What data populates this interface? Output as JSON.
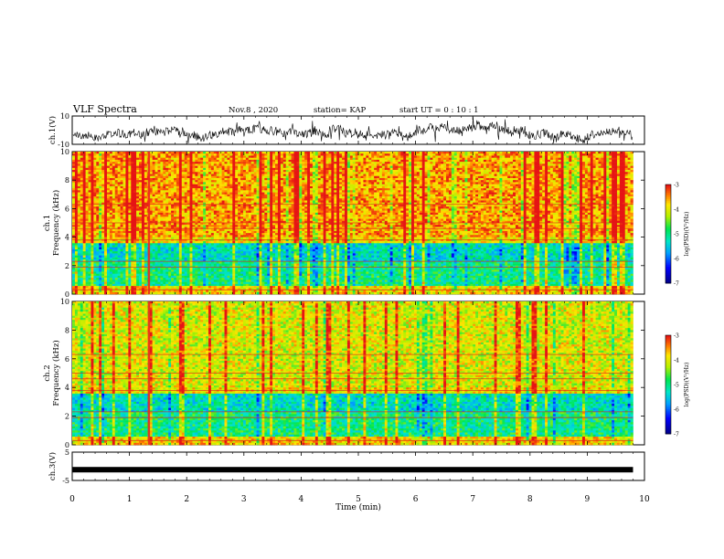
{
  "header": {
    "title": "VLF Spectra",
    "date": "Nov.8 , 2020",
    "station": "station= KAP",
    "start": "start UT = 0 : 10 : 1"
  },
  "chart_data": [
    {
      "type": "line",
      "panel": "ch1-waveform",
      "ylabel": "ch.1(V)",
      "ylim": [
        -10,
        10
      ],
      "yticks": [
        "10",
        "-10"
      ],
      "xlim": [
        0,
        10
      ],
      "series": [
        {
          "values_note_omitted": true
        }
      ],
      "color": "#000000"
    },
    {
      "type": "heatmap",
      "panel": "ch1-spectrogram",
      "ylabel": "ch.1 Frequency (kHz)",
      "ylim": [
        0,
        10
      ],
      "yticks": [
        "0",
        "2",
        "4",
        "6",
        "8",
        "10"
      ],
      "xlim": [
        0,
        9.8
      ],
      "colorbar": {
        "label": "log(PSD)(V²/Hz)",
        "range": [
          -7,
          -3
        ],
        "ticks": [
          "-3",
          "-4",
          "-5",
          "-6",
          "-7"
        ]
      }
    },
    {
      "type": "heatmap",
      "panel": "ch2-spectrogram",
      "ylabel": "ch.2 Frequency (kHz)",
      "ylim": [
        0,
        10
      ],
      "yticks": [
        "0",
        "2",
        "4",
        "6",
        "8",
        "10"
      ],
      "xlim": [
        0,
        9.8
      ],
      "colorbar": {
        "label": "log(PSD)(V²/Hz)",
        "range": [
          -7,
          -3
        ],
        "ticks": [
          "-3",
          "-4",
          "-5",
          "-6",
          "-7"
        ]
      }
    },
    {
      "type": "line",
      "panel": "ch3-waveform",
      "ylabel": "ch.3(V)",
      "ylim": [
        -5,
        5
      ],
      "yticks": [
        "5",
        "-5"
      ],
      "xlim": [
        0,
        10
      ],
      "constant_value": -1.2,
      "color": "#000000"
    }
  ],
  "xaxis": {
    "label": "Time (min)",
    "ticks": [
      "0",
      "1",
      "2",
      "3",
      "4",
      "5",
      "6",
      "7",
      "8",
      "9",
      "10"
    ]
  }
}
